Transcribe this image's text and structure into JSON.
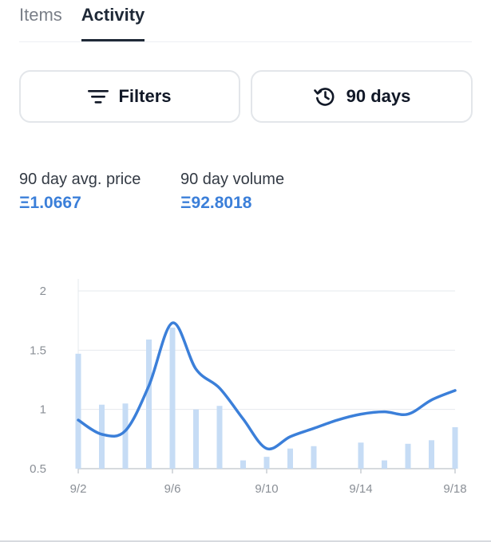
{
  "tabs": [
    {
      "label": "Items",
      "active": false
    },
    {
      "label": "Activity",
      "active": true
    }
  ],
  "filters_button": {
    "label": "Filters",
    "icon": "filter-lines-icon"
  },
  "days_button": {
    "label": "90 days",
    "icon": "history-clock-icon"
  },
  "stats": {
    "avg_price": {
      "label": "90 day avg. price",
      "value": "Ξ1.0667"
    },
    "volume": {
      "label": "90 day volume",
      "value": "Ξ92.8018"
    }
  },
  "colors": {
    "accent": "#3b7fd9",
    "bar": "#c6dcf5",
    "grid": "#e6e9ee"
  },
  "chart_data": {
    "type": "bar",
    "x_ticks": [
      "9/2",
      "9/6",
      "9/10",
      "9/14",
      "9/18"
    ],
    "y_ticks": [
      "2",
      "1.5",
      "1",
      "0.5"
    ],
    "ylim": [
      0.5,
      2
    ],
    "xlim": [
      2,
      18
    ],
    "series": [
      {
        "type": "bar",
        "x": [
          2,
          3,
          4,
          5,
          6,
          7,
          8,
          9,
          10,
          11,
          12,
          14,
          15,
          16,
          17,
          18
        ],
        "values": [
          1.47,
          1.04,
          1.05,
          1.59,
          1.69,
          1.0,
          1.03,
          0.57,
          0.6,
          0.67,
          0.69,
          0.72,
          0.57,
          0.71,
          0.74,
          0.85
        ]
      },
      {
        "type": "line",
        "x": [
          2,
          3,
          4,
          5,
          6,
          7,
          8,
          9,
          10,
          11,
          12,
          13,
          14,
          15,
          16,
          17,
          18
        ],
        "values": [
          0.91,
          0.79,
          0.82,
          1.2,
          1.73,
          1.34,
          1.18,
          0.92,
          0.67,
          0.77,
          0.84,
          0.91,
          0.96,
          0.98,
          0.96,
          1.08,
          1.16
        ]
      }
    ]
  }
}
